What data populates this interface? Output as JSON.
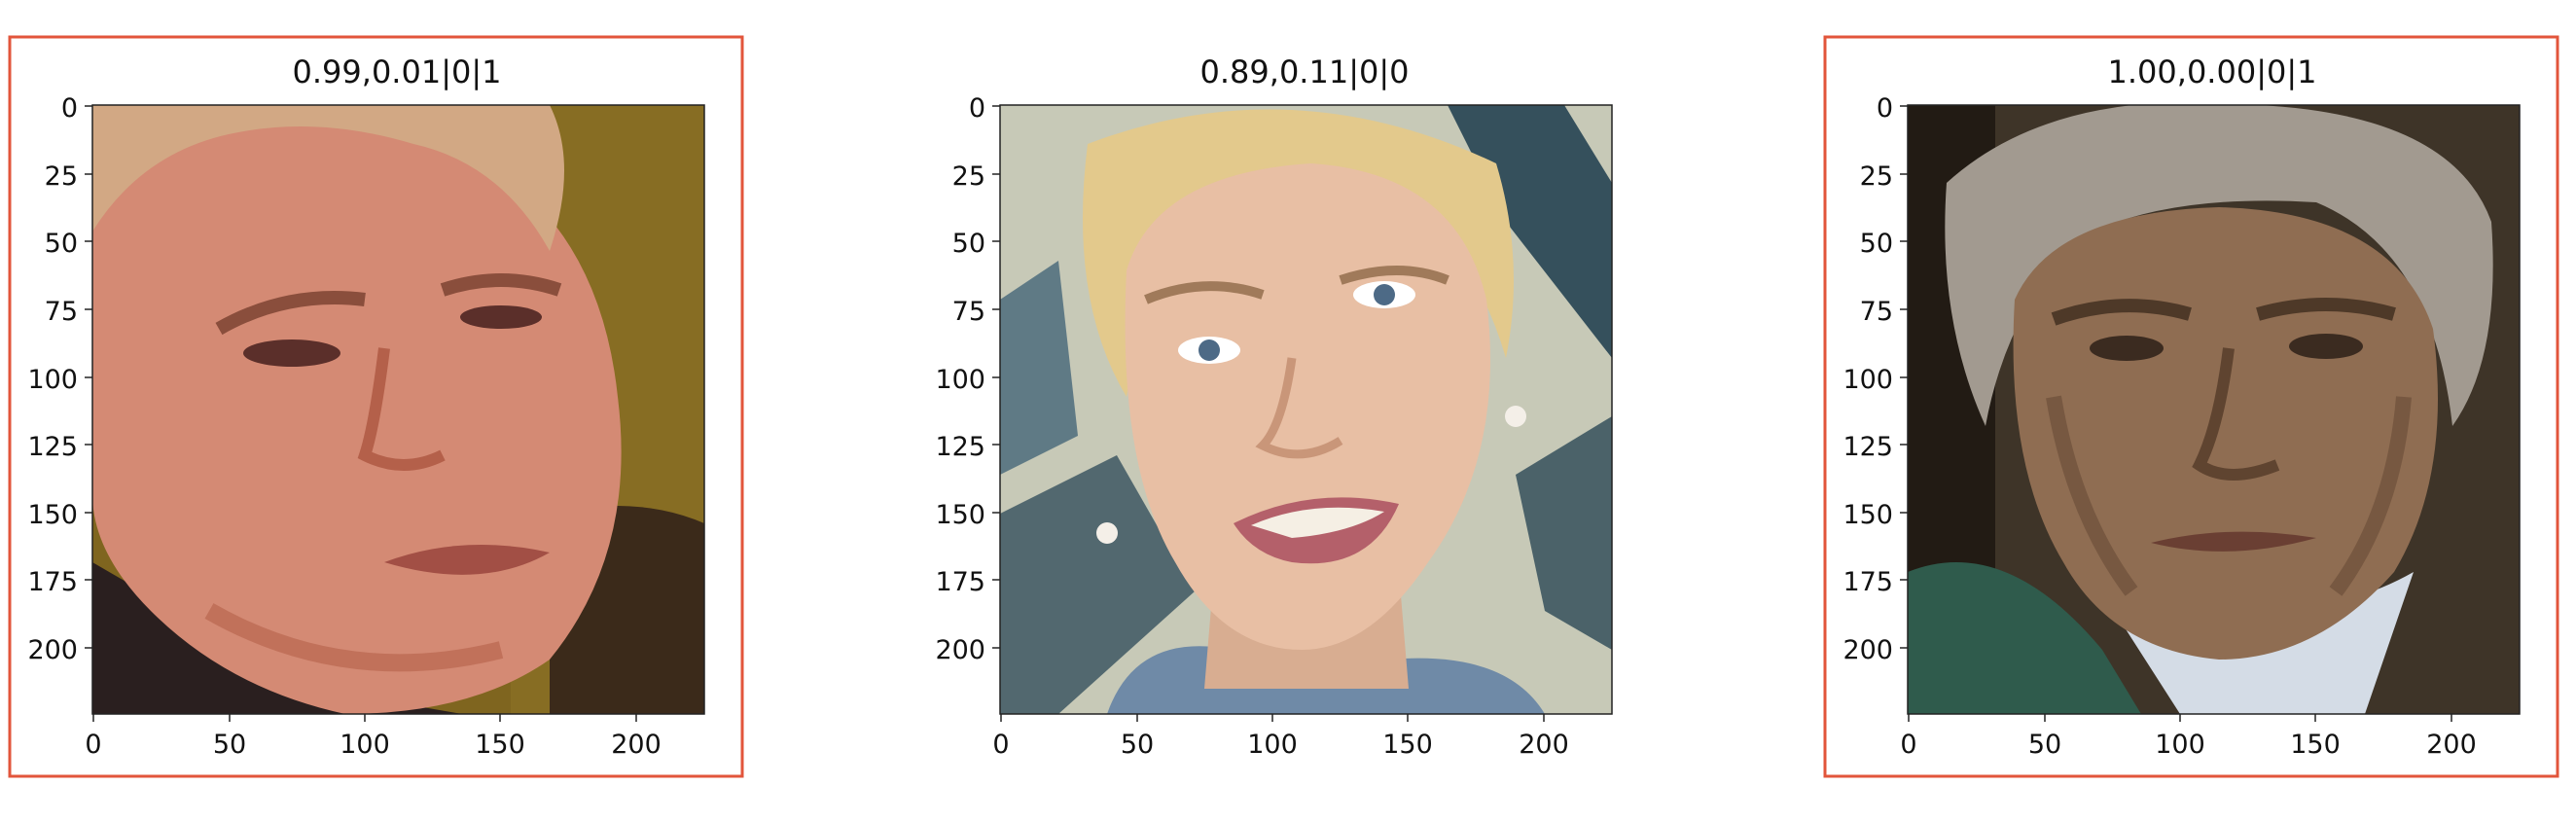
{
  "panels": [
    {
      "title": "0.99,0.01|0|1",
      "highlighted": true,
      "x_ticks": [
        "0",
        "50",
        "100",
        "150",
        "200"
      ],
      "y_ticks": [
        "0",
        "25",
        "50",
        "75",
        "100",
        "125",
        "150",
        "175",
        "200"
      ],
      "image": {
        "subject": "face-older-man-blond-hair",
        "skin": "#d48a74",
        "skin_shadow": "#b4604a",
        "hair": "#d2a884",
        "background": "#7f651f",
        "background_dark": "#3b2a1a",
        "clothing": "#2a1f1f"
      }
    },
    {
      "title": "0.89,0.11|0|0",
      "highlighted": false,
      "x_ticks": [
        "0",
        "50",
        "100",
        "150",
        "200"
      ],
      "y_ticks": [
        "0",
        "25",
        "50",
        "75",
        "100",
        "125",
        "150",
        "175",
        "200"
      ],
      "image": {
        "subject": "face-young-woman-blonde-hair",
        "skin": "#e8bfa4",
        "skin_shadow": "#c99679",
        "hair": "#e3c98c",
        "background": "#c7c9b7",
        "background_dark": "#35505c",
        "clothing": "#6f8aa7"
      }
    },
    {
      "title": "1.00,0.00|0|1",
      "highlighted": true,
      "x_ticks": [
        "0",
        "50",
        "100",
        "150",
        "200"
      ],
      "y_ticks": [
        "0",
        "25",
        "50",
        "75",
        "100",
        "125",
        "150",
        "175",
        "200"
      ],
      "image": {
        "subject": "face-man-grey-hair",
        "skin": "#8f6d52",
        "skin_shadow": "#5f4430",
        "hair": "#a29a90",
        "background": "#3e3428",
        "background_dark": "#221b14",
        "clothing": "#2f5b4c"
      }
    }
  ],
  "colors": {
    "highlight_border": "#e2553b",
    "axis": "#222222"
  }
}
